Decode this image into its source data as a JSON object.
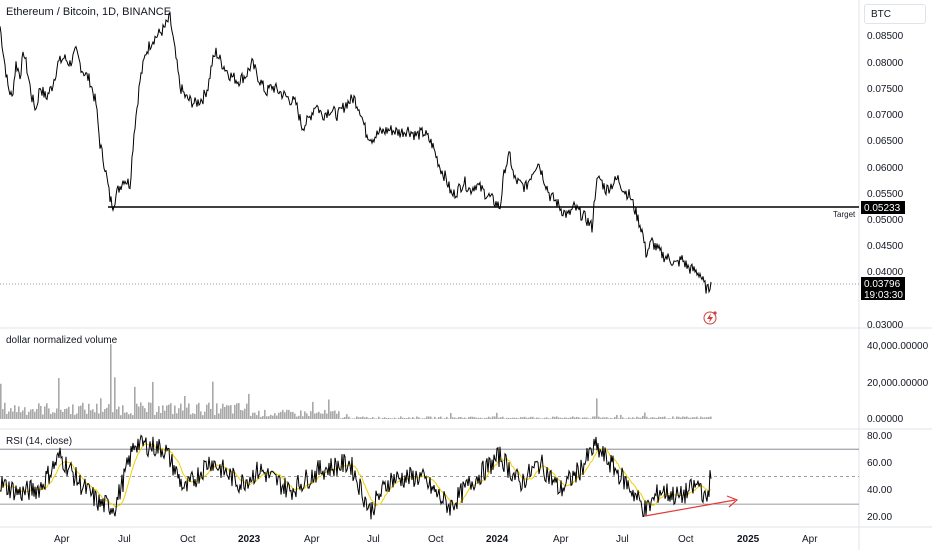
{
  "header": {
    "symbol_title": "Ethereum / Bitcoin, 1D, BINANCE",
    "currency_button": "BTC"
  },
  "price_pane": {
    "y_ticks": [
      "0.08500",
      "0.08000",
      "0.07500",
      "0.07000",
      "0.06500",
      "0.06000",
      "0.05500",
      "0.05000",
      "0.04500",
      "0.04000",
      "0.03000"
    ],
    "target_text": "Target",
    "target_price": "0.05233",
    "last_price": "0.03796",
    "countdown": "19:03:30"
  },
  "volume_pane": {
    "title": "dollar normalized volume",
    "y_ticks": [
      "40,000.00000",
      "20,000.00000",
      "0.00000"
    ]
  },
  "rsi_pane": {
    "title": "RSI (14, close)",
    "y_ticks": [
      "80.00",
      "60.00",
      "40.00",
      "20.00"
    ]
  },
  "time_axis": {
    "labels": [
      "Apr",
      "Jul",
      "Oct",
      "2023",
      "Apr",
      "Jul",
      "Oct",
      "2024",
      "Apr",
      "Jul",
      "Oct",
      "2025",
      "Apr"
    ]
  },
  "chart_data": {
    "type": "line",
    "symbol": "ETHBTC",
    "interval": "1D",
    "exchange": "BINANCE",
    "price_keypoints": [
      {
        "t": 0,
        "v": 0.0825
      },
      {
        "t": 4,
        "v": 0.077
      },
      {
        "t": 8,
        "v": 0.072
      },
      {
        "t": 12,
        "v": 0.07
      },
      {
        "t": 16,
        "v": 0.076
      },
      {
        "t": 20,
        "v": 0.074
      },
      {
        "t": 24,
        "v": 0.078
      },
      {
        "t": 28,
        "v": 0.074
      },
      {
        "t": 32,
        "v": 0.07
      },
      {
        "t": 36,
        "v": 0.068
      },
      {
        "t": 40,
        "v": 0.072
      },
      {
        "t": 46,
        "v": 0.07
      },
      {
        "t": 52,
        "v": 0.072
      },
      {
        "t": 58,
        "v": 0.076
      },
      {
        "t": 64,
        "v": 0.077
      },
      {
        "t": 70,
        "v": 0.076
      },
      {
        "t": 76,
        "v": 0.078
      },
      {
        "t": 82,
        "v": 0.075
      },
      {
        "t": 90,
        "v": 0.073
      },
      {
        "t": 96,
        "v": 0.069
      },
      {
        "t": 100,
        "v": 0.062
      },
      {
        "t": 105,
        "v": 0.058
      },
      {
        "t": 110,
        "v": 0.0525
      },
      {
        "t": 113,
        "v": 0.0515
      },
      {
        "t": 118,
        "v": 0.054
      },
      {
        "t": 124,
        "v": 0.056
      },
      {
        "t": 130,
        "v": 0.055
      },
      {
        "t": 134,
        "v": 0.064
      },
      {
        "t": 140,
        "v": 0.073
      },
      {
        "t": 146,
        "v": 0.078
      },
      {
        "t": 152,
        "v": 0.08
      },
      {
        "t": 158,
        "v": 0.081
      },
      {
        "t": 164,
        "v": 0.082
      },
      {
        "t": 170,
        "v": 0.084
      },
      {
        "t": 175,
        "v": 0.078
      },
      {
        "t": 180,
        "v": 0.072
      },
      {
        "t": 186,
        "v": 0.07
      },
      {
        "t": 195,
        "v": 0.069
      },
      {
        "t": 203,
        "v": 0.07
      },
      {
        "t": 208,
        "v": 0.072
      },
      {
        "t": 212,
        "v": 0.076
      },
      {
        "t": 216,
        "v": 0.078
      },
      {
        "t": 222,
        "v": 0.076
      },
      {
        "t": 230,
        "v": 0.074
      },
      {
        "t": 238,
        "v": 0.073
      },
      {
        "t": 246,
        "v": 0.074
      },
      {
        "t": 252,
        "v": 0.076
      },
      {
        "t": 260,
        "v": 0.073
      },
      {
        "t": 266,
        "v": 0.071
      },
      {
        "t": 272,
        "v": 0.072
      },
      {
        "t": 280,
        "v": 0.071
      },
      {
        "t": 288,
        "v": 0.07
      },
      {
        "t": 296,
        "v": 0.069
      },
      {
        "t": 302,
        "v": 0.065
      },
      {
        "t": 308,
        "v": 0.066
      },
      {
        "t": 316,
        "v": 0.069
      },
      {
        "t": 322,
        "v": 0.067
      },
      {
        "t": 330,
        "v": 0.068
      },
      {
        "t": 338,
        "v": 0.067
      },
      {
        "t": 346,
        "v": 0.069
      },
      {
        "t": 354,
        "v": 0.07
      },
      {
        "t": 360,
        "v": 0.068
      },
      {
        "t": 366,
        "v": 0.064
      },
      {
        "t": 372,
        "v": 0.063
      },
      {
        "t": 380,
        "v": 0.064
      },
      {
        "t": 390,
        "v": 0.0645
      },
      {
        "t": 400,
        "v": 0.064
      },
      {
        "t": 408,
        "v": 0.0645
      },
      {
        "t": 416,
        "v": 0.0635
      },
      {
        "t": 424,
        "v": 0.064
      },
      {
        "t": 432,
        "v": 0.062
      },
      {
        "t": 440,
        "v": 0.058
      },
      {
        "t": 446,
        "v": 0.056
      },
      {
        "t": 452,
        "v": 0.053
      },
      {
        "t": 458,
        "v": 0.054
      },
      {
        "t": 464,
        "v": 0.0555
      },
      {
        "t": 470,
        "v": 0.054
      },
      {
        "t": 476,
        "v": 0.055
      },
      {
        "t": 482,
        "v": 0.054
      },
      {
        "t": 488,
        "v": 0.053
      },
      {
        "t": 494,
        "v": 0.052
      },
      {
        "t": 500,
        "v": 0.051
      },
      {
        "t": 505,
        "v": 0.058
      },
      {
        "t": 510,
        "v": 0.06
      },
      {
        "t": 514,
        "v": 0.056
      },
      {
        "t": 520,
        "v": 0.055
      },
      {
        "t": 526,
        "v": 0.0545
      },
      {
        "t": 532,
        "v": 0.057
      },
      {
        "t": 538,
        "v": 0.059
      },
      {
        "t": 544,
        "v": 0.056
      },
      {
        "t": 550,
        "v": 0.053
      },
      {
        "t": 556,
        "v": 0.052
      },
      {
        "t": 562,
        "v": 0.0505
      },
      {
        "t": 568,
        "v": 0.0495
      },
      {
        "t": 574,
        "v": 0.051
      },
      {
        "t": 580,
        "v": 0.05
      },
      {
        "t": 586,
        "v": 0.049
      },
      {
        "t": 592,
        "v": 0.0475
      },
      {
        "t": 596,
        "v": 0.055
      },
      {
        "t": 600,
        "v": 0.056
      },
      {
        "t": 606,
        "v": 0.054
      },
      {
        "t": 612,
        "v": 0.055
      },
      {
        "t": 618,
        "v": 0.056
      },
      {
        "t": 624,
        "v": 0.054
      },
      {
        "t": 630,
        "v": 0.053
      },
      {
        "t": 636,
        "v": 0.05
      },
      {
        "t": 642,
        "v": 0.047
      },
      {
        "t": 646,
        "v": 0.043
      },
      {
        "t": 652,
        "v": 0.045
      },
      {
        "t": 658,
        "v": 0.0435
      },
      {
        "t": 664,
        "v": 0.0425
      },
      {
        "t": 670,
        "v": 0.042
      },
      {
        "t": 676,
        "v": 0.041
      },
      {
        "t": 682,
        "v": 0.042
      },
      {
        "t": 688,
        "v": 0.0405
      },
      {
        "t": 694,
        "v": 0.04
      },
      {
        "t": 700,
        "v": 0.0395
      },
      {
        "t": 704,
        "v": 0.0375
      },
      {
        "t": 708,
        "v": 0.0365
      },
      {
        "t": 711,
        "v": 0.038
      }
    ],
    "target_level": 0.05233,
    "last_price": 0.03796,
    "price_ylim": [
      0.03,
      0.086
    ],
    "volume_peak": 40000,
    "volume_ylim": [
      0,
      46000
    ],
    "rsi_levels": [
      70,
      50,
      30
    ],
    "rsi_ylim": [
      14,
      84
    ],
    "rsi_keypoints": [
      {
        "t": 0,
        "v": 45
      },
      {
        "t": 20,
        "v": 38
      },
      {
        "t": 40,
        "v": 42
      },
      {
        "t": 60,
        "v": 65
      },
      {
        "t": 80,
        "v": 45
      },
      {
        "t": 100,
        "v": 30
      },
      {
        "t": 115,
        "v": 28
      },
      {
        "t": 135,
        "v": 75
      },
      {
        "t": 165,
        "v": 70
      },
      {
        "t": 185,
        "v": 40
      },
      {
        "t": 210,
        "v": 62
      },
      {
        "t": 240,
        "v": 45
      },
      {
        "t": 260,
        "v": 55
      },
      {
        "t": 290,
        "v": 40
      },
      {
        "t": 320,
        "v": 55
      },
      {
        "t": 350,
        "v": 60
      },
      {
        "t": 370,
        "v": 25
      },
      {
        "t": 390,
        "v": 48
      },
      {
        "t": 420,
        "v": 50
      },
      {
        "t": 440,
        "v": 35
      },
      {
        "t": 450,
        "v": 28
      },
      {
        "t": 470,
        "v": 45
      },
      {
        "t": 500,
        "v": 65
      },
      {
        "t": 520,
        "v": 45
      },
      {
        "t": 540,
        "v": 60
      },
      {
        "t": 560,
        "v": 40
      },
      {
        "t": 580,
        "v": 55
      },
      {
        "t": 595,
        "v": 72
      },
      {
        "t": 610,
        "v": 60
      },
      {
        "t": 630,
        "v": 42
      },
      {
        "t": 646,
        "v": 25
      },
      {
        "t": 660,
        "v": 40
      },
      {
        "t": 680,
        "v": 35
      },
      {
        "t": 700,
        "v": 45
      },
      {
        "t": 706,
        "v": 30
      },
      {
        "t": 711,
        "v": 52
      }
    ]
  }
}
